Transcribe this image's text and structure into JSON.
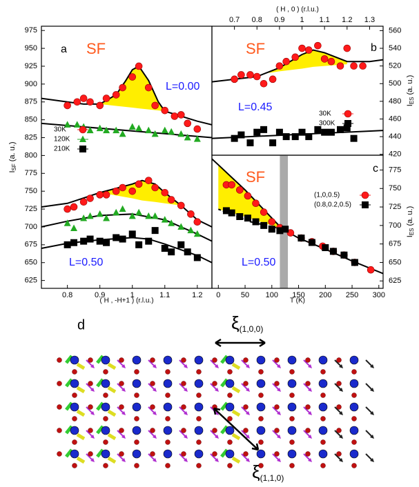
{
  "chart_data": [
    {
      "type": "scatter",
      "label": "a",
      "xlabel": "( H , -H+1 ) (r.l.u.)",
      "ylabel": {
        "main": "I",
        "sub": "SF",
        "unit": "(a. u.)"
      },
      "xaxis_side": "bottom",
      "yaxis_side": "left",
      "xlim": [
        0.72,
        1.245
      ],
      "ylim": [
        614,
        981
      ],
      "xticks": [
        0.8,
        0.9,
        1,
        1.1,
        1.2
      ],
      "yticks": [
        625,
        650,
        675,
        700,
        725,
        750,
        775,
        800,
        825,
        850,
        875,
        900,
        925,
        950,
        975
      ],
      "annotations": [
        {
          "text": "SF",
          "color": "#ff5a1e"
        },
        {
          "text": "L=0.00",
          "color": "#1a1aff"
        },
        {
          "text": "L=0.50",
          "color": "#1a1aff"
        }
      ],
      "series": [
        {
          "name": "30K",
          "color": "#ff1a1a",
          "marker": "circle",
          "x": [
            0.8,
            0.83,
            0.85,
            0.87,
            0.9,
            0.92,
            0.95,
            0.97,
            1.0,
            1.02,
            1.05,
            1.07,
            1.1,
            1.13,
            1.15,
            1.17,
            1.2,
            0.8,
            0.82,
            0.85,
            0.87,
            0.9,
            0.92,
            0.95,
            0.97,
            1.0,
            1.02,
            1.05,
            1.07,
            1.1,
            1.12,
            1.15,
            1.18,
            1.2
          ],
          "values": [
            870,
            875,
            880,
            875,
            870,
            880,
            885,
            895,
            910,
            925,
            895,
            870,
            863,
            855,
            857,
            845,
            837,
            725,
            728,
            735,
            740,
            745,
            745,
            750,
            755,
            750,
            760,
            765,
            755,
            748,
            738,
            730,
            718,
            707
          ]
        },
        {
          "name": "120K",
          "color": "#22aa22",
          "marker": "triangle",
          "x": [
            0.8,
            0.83,
            0.85,
            0.87,
            0.9,
            0.92,
            0.95,
            0.97,
            1.0,
            1.02,
            1.05,
            1.07,
            1.1,
            1.12,
            1.15,
            1.17,
            1.2,
            0.8,
            0.82,
            0.85,
            0.87,
            0.9,
            0.92,
            0.95,
            0.97,
            1.0,
            1.02,
            1.05,
            1.07,
            1.1,
            1.12,
            1.15,
            1.18,
            1.2
          ],
          "values": [
            843,
            843,
            840,
            835,
            838,
            835,
            835,
            830,
            840,
            838,
            835,
            830,
            835,
            833,
            830,
            825,
            823,
            705,
            698,
            712,
            715,
            718,
            712,
            720,
            725,
            715,
            720,
            715,
            715,
            710,
            705,
            700,
            695,
            690
          ]
        },
        {
          "name": "210K",
          "color": "#000000",
          "marker": "square",
          "x": [
            0.8,
            0.82,
            0.85,
            0.87,
            0.9,
            0.92,
            0.95,
            0.97,
            1.0,
            1.02,
            1.05,
            1.07,
            1.1,
            1.12,
            1.15,
            1.17,
            1.2
          ],
          "values": [
            675,
            678,
            680,
            683,
            680,
            678,
            685,
            683,
            690,
            675,
            680,
            695,
            670,
            665,
            675,
            665,
            657
          ]
        }
      ],
      "fits": [
        {
          "x": [
            0.72,
            0.8,
            0.85,
            0.9,
            0.95,
            0.98,
            1.0,
            1.02,
            1.05,
            1.08,
            1.1,
            1.15,
            1.2,
            1.245
          ],
          "values": [
            880,
            875,
            872,
            872,
            885,
            905,
            920,
            925,
            905,
            875,
            862,
            855,
            848,
            843
          ]
        },
        {
          "x": [
            0.72,
            1.245
          ],
          "values": [
            845,
            825
          ]
        },
        {
          "x": [
            0.72,
            0.8,
            0.9,
            1.0,
            1.03,
            1.07,
            1.1,
            1.15,
            1.2,
            1.245
          ],
          "values": [
            728,
            733,
            748,
            760,
            765,
            760,
            748,
            730,
            710,
            700
          ]
        },
        {
          "x": [
            0.72,
            0.8,
            0.9,
            1.0,
            1.1,
            1.2,
            1.245
          ],
          "values": [
            700,
            708,
            716,
            718,
            710,
            690,
            680
          ]
        },
        {
          "x": [
            0.72,
            0.8,
            0.9,
            1.0,
            1.05,
            1.1,
            1.2,
            1.245
          ],
          "values": [
            670,
            677,
            682,
            685,
            683,
            676,
            660,
            650
          ]
        }
      ],
      "fills": [
        {
          "x": [
            0.9,
            0.95,
            0.98,
            1.0,
            1.02,
            1.05,
            1.08,
            1.1
          ],
          "upper": [
            872,
            885,
            905,
            920,
            925,
            905,
            875,
            862
          ],
          "lower": [
            872,
            869.5,
            868,
            867,
            866,
            864.5,
            863,
            862
          ]
        },
        {
          "x": [
            0.9,
            0.95,
            1.0,
            1.03,
            1.07,
            1.1,
            1.15
          ],
          "upper": [
            748,
            755,
            760,
            765,
            760,
            748,
            730
          ],
          "lower": [
            748,
            744,
            740,
            737,
            735,
            733,
            730
          ]
        }
      ],
      "fill_color": "#ffee00"
    },
    {
      "type": "scatter",
      "label": "b",
      "xlabel": "( H , 0 ) (r.l.u.)",
      "ylabel": {
        "main": "I",
        "sub": "ES",
        "unit": "(a. u.)"
      },
      "xaxis_side": "top",
      "yaxis_side": "right",
      "xlim": [
        0.6,
        1.36
      ],
      "ylim": [
        419,
        565
      ],
      "xticks": [
        0.7,
        0.8,
        0.9,
        1,
        1.1,
        1.2,
        1.3
      ],
      "yticks": [
        420,
        440,
        460,
        480,
        500,
        520,
        540,
        560
      ],
      "annotations": [
        {
          "text": "SF",
          "color": "#ff5a1e"
        },
        {
          "text": "L=0.45",
          "color": "#1a1aff"
        }
      ],
      "series": [
        {
          "name": "30K",
          "color": "#ff1a1a",
          "marker": "circle",
          "x": [
            0.7,
            0.73,
            0.77,
            0.8,
            0.83,
            0.87,
            0.9,
            0.93,
            0.97,
            1.0,
            1.03,
            1.07,
            1.1,
            1.13,
            1.17,
            1.2,
            1.23,
            1.27
          ],
          "values": [
            505,
            510,
            510,
            508,
            500,
            505,
            520,
            525,
            530,
            540,
            538,
            543,
            528,
            525,
            520,
            540,
            520,
            520
          ]
        },
        {
          "name": "300K",
          "color": "#000000",
          "marker": "square",
          "x": [
            0.7,
            0.73,
            0.77,
            0.8,
            0.83,
            0.87,
            0.9,
            0.93,
            0.97,
            1.0,
            1.03,
            1.07,
            1.1,
            1.13,
            1.17,
            1.2,
            1.23
          ],
          "values": [
            438,
            442,
            433,
            445,
            448,
            433,
            445,
            440,
            440,
            445,
            440,
            448,
            445,
            445,
            448,
            450,
            438
          ]
        }
      ],
      "fits": [
        {
          "x": [
            0.6,
            0.7,
            0.8,
            0.9,
            1.0,
            1.05,
            1.1,
            1.2,
            1.3,
            1.36
          ],
          "values": [
            502,
            505,
            508,
            518,
            533,
            538,
            535,
            525,
            525,
            527
          ]
        },
        {
          "x": [
            0.6,
            1.36
          ],
          "values": [
            438,
            447
          ]
        }
      ],
      "fills": [
        {
          "x": [
            0.85,
            0.9,
            1.0,
            1.05,
            1.1,
            1.2
          ],
          "upper": [
            512,
            518,
            533,
            538,
            535,
            525
          ],
          "lower": [
            512,
            514,
            517,
            519,
            520,
            522
          ]
        }
      ],
      "fill_color": "#ffee00"
    },
    {
      "type": "scatter",
      "label": "c",
      "xlabel": "T (K)",
      "ylabel": {
        "main": "I",
        "sub": "ES",
        "unit": "(a. u.)"
      },
      "xaxis_side": "bottom",
      "yaxis_side": "right",
      "xlim": [
        -12,
        308
      ],
      "ylim": [
        615,
        795
      ],
      "xticks": [
        0,
        50,
        100,
        150,
        200,
        250,
        300
      ],
      "yticks": [
        625,
        650,
        675,
        700,
        725,
        750,
        775
      ],
      "band": [
        115,
        130
      ],
      "band_color": "#aaaaaa",
      "annotations": [
        {
          "text": "SF",
          "color": "#ff5a1e"
        },
        {
          "text": "L=0.50",
          "color": "#1a1aff"
        }
      ],
      "series": [
        {
          "name": "(1,0,0.5)",
          "color": "#ff1a1a",
          "marker": "circle",
          "x": [
            15,
            25,
            40,
            55,
            70,
            85,
            100,
            115,
            135,
            155,
            175,
            195,
            215,
            235,
            255,
            285
          ],
          "values": [
            755,
            755,
            748,
            740,
            730,
            718,
            705,
            697,
            690,
            683,
            678,
            672,
            665,
            660,
            650,
            640
          ]
        },
        {
          "name": "(0.8,0.2,0.5)",
          "color": "#000000",
          "marker": "square",
          "x": [
            15,
            25,
            40,
            55,
            70,
            85,
            100,
            115,
            125,
            155,
            175,
            200,
            215,
            235,
            255
          ],
          "values": [
            720,
            717,
            712,
            710,
            705,
            700,
            695,
            693,
            695,
            683,
            677,
            670,
            665,
            660,
            650
          ]
        }
      ],
      "fits": [
        {
          "x": [
            -12,
            0,
            50,
            100,
            120,
            150,
            200,
            250,
            308
          ],
          "values": [
            790,
            782,
            748,
            710,
            695,
            683,
            668,
            652,
            635
          ]
        },
        {
          "x": [
            0,
            60,
            120
          ],
          "values": [
            722,
            705,
            695
          ],
          "dashed": true
        }
      ],
      "fills": [
        {
          "x": [
            0,
            50,
            100,
            120
          ],
          "upper": [
            782,
            748,
            710,
            695
          ],
          "lower": [
            722,
            712,
            700,
            695
          ]
        }
      ],
      "fill_color": "#ffee00"
    }
  ],
  "diagram": {
    "label": "d",
    "xi_100": {
      "symbol": "ξ",
      "subscript": "(1,0,0)"
    },
    "xi_110": {
      "symbol": "ξ",
      "subscript": "(1,1,0)"
    }
  }
}
